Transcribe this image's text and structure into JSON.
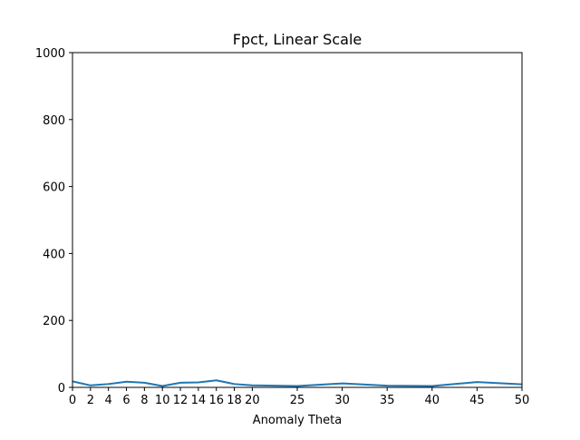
{
  "chart_data": {
    "type": "line",
    "title": "Fpct, Linear Scale",
    "xlabel": "Anomaly Theta",
    "ylabel": "",
    "xlim": [
      0,
      50
    ],
    "ylim": [
      0,
      1000
    ],
    "x_ticks": [
      0,
      2,
      4,
      6,
      8,
      10,
      12,
      14,
      16,
      18,
      20,
      25,
      30,
      35,
      40,
      45,
      50
    ],
    "y_ticks": [
      0,
      200,
      400,
      600,
      800,
      1000
    ],
    "grid": false,
    "series": [
      {
        "color": "#1f77b4",
        "x": [
          0,
          2,
          4,
          6,
          8,
          10,
          12,
          14,
          16,
          18,
          20,
          25,
          30,
          35,
          40,
          45,
          50
        ],
        "y": [
          18,
          6,
          10,
          17,
          14,
          4,
          14,
          15,
          21,
          10,
          6,
          4,
          12,
          5,
          4,
          16,
          9
        ]
      }
    ]
  }
}
